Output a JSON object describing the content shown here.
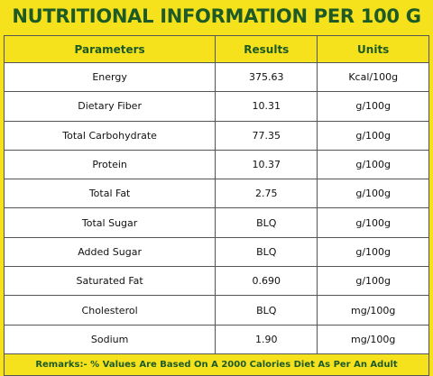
{
  "title": "NUTRITIONAL INFORMATION PER 100 G",
  "table": {
    "header": [
      "Parameters",
      "Results",
      "Units"
    ],
    "rows": [
      [
        "Energy",
        "375.63",
        "Kcal/100g"
      ],
      [
        "Dietary Fiber",
        "10.31",
        "g/100g"
      ],
      [
        "Total Carbohydrate",
        "77.35",
        "g/100g"
      ],
      [
        "Protein",
        "10.37",
        "g/100g"
      ],
      [
        "Total Fat",
        "2.75",
        "g/100g"
      ],
      [
        "Total Sugar",
        "BLQ",
        "g/100g"
      ],
      [
        "Added Sugar",
        "BLQ",
        "g/100g"
      ],
      [
        "Saturated Fat",
        "0.690",
        "g/100g"
      ],
      [
        "Cholesterol",
        "BLQ",
        "mg/100g"
      ],
      [
        "Sodium",
        "1.90",
        "mg/100g"
      ]
    ],
    "remarks": "Remarks:- % Values Are Based On A 2000 Calories Diet As Per An Adult"
  }
}
